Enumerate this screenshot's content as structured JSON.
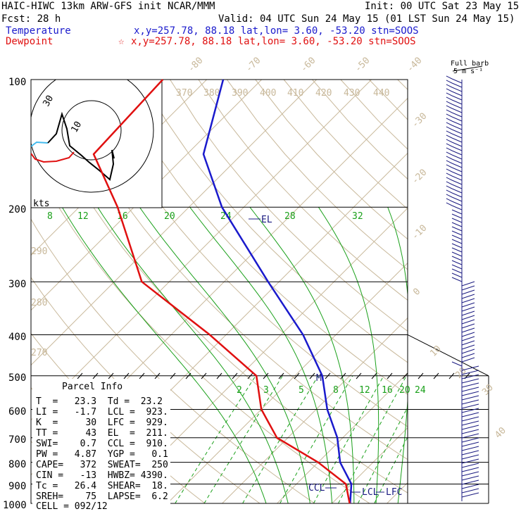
{
  "header": {
    "line1_left": "HAIC-HIWC 13km ARW-GFS init   NCAR/MMM",
    "line1_right": "Init: 00 UTC Sat 23 May 15",
    "line2_left": "Fcst:   28 h",
    "line2_right": "Valid: 04 UTC Sun 24 May 15 (01 LST Sun 24 May 15)",
    "temperature_label": "Temperature",
    "temperature_info": "x,y=257.78, 88.18   lat,lon=  3.60, -53.20  stn=SOOS",
    "dewpoint_label": "Dewpoint",
    "dewpoint_info": "x,y=257.78, 88.18   lat,lon=  3.60, -53.20  stn=SOOS",
    "dewpoint_marker": "☆"
  },
  "barb_key": {
    "line1": "Full barb",
    "line2": "5 m s⁻¹"
  },
  "pressure_levels": [
    "100",
    "200",
    "300",
    "400",
    "500",
    "600",
    "700",
    "800",
    "900",
    "1000"
  ],
  "isotherm_labels": [
    "-80",
    "-70",
    "-60",
    "-50",
    "-40",
    "-30",
    "-20",
    "-10",
    "0",
    "10",
    "20",
    "30",
    "40"
  ],
  "theta_labels": [
    "370",
    "380",
    "390",
    "400",
    "410",
    "420",
    "430",
    "440",
    "290",
    "280",
    "270"
  ],
  "mixing_ratio_upper": [
    "8",
    "12",
    "16",
    "20",
    "24",
    "28",
    "32"
  ],
  "mixing_ratio_lower": [
    "2",
    "3",
    "5",
    "8",
    "12",
    "16",
    "20",
    "24"
  ],
  "level_markers": {
    "el": "EL",
    "m": "M",
    "ccl": "CCL",
    "lcl": "LCL",
    "lfc": "LFC"
  },
  "hodograph": {
    "units": "kts",
    "ring_labels": [
      "30",
      "10"
    ]
  },
  "parcel_info": {
    "title": "Parcel Info",
    "rows": [
      "T  =   23.3  Td =  23.2",
      "LI =   -1.7  LCL =  923.",
      "K  =     30  LFC =  929.",
      "TT =     43  EL  =  211.",
      "SWI=    0.7  CCL =  910.",
      "PW =   4.87  YGP =   0.1",
      "CAPE=   372  SWEAT=  250",
      "CIN =   -13  HWBZ= 4390.",
      "Tc =   26.4  SHEAR=  18.",
      "SREH=    75  LAPSE=  6.2",
      "CELL = 092/12"
    ]
  },
  "colors": {
    "temperature": "#1a1acc",
    "dewpoint": "#e01010",
    "isotherm": "#c8b89a",
    "mixing_ratio": "#1aa01a",
    "wind_barb": "#1a1a80",
    "hodo_cyan": "#44bbee"
  },
  "chart_data": {
    "type": "line",
    "chart_kind": "skew-T log-p sounding",
    "y_axis": "pressure (hPa)",
    "y_scale": "log",
    "ylim": [
      1000,
      100
    ],
    "series": [
      {
        "name": "Temperature",
        "values": [
          {
            "p": 100,
            "t": -77
          },
          {
            "p": 150,
            "t": -67
          },
          {
            "p": 200,
            "t": -54
          },
          {
            "p": 300,
            "t": -32
          },
          {
            "p": 400,
            "t": -16
          },
          {
            "p": 500,
            "t": -5
          },
          {
            "p": 600,
            "t": 2
          },
          {
            "p": 700,
            "t": 9
          },
          {
            "p": 800,
            "t": 14
          },
          {
            "p": 900,
            "t": 20
          },
          {
            "p": 1000,
            "t": 23.3
          }
        ]
      },
      {
        "name": "Dewpoint",
        "values": [
          {
            "p": 100,
            "t": -88
          },
          {
            "p": 150,
            "t": -87
          },
          {
            "p": 200,
            "t": -73
          },
          {
            "p": 300,
            "t": -55
          },
          {
            "p": 400,
            "t": -33
          },
          {
            "p": 500,
            "t": -17
          },
          {
            "p": 600,
            "t": -10
          },
          {
            "p": 700,
            "t": -2
          },
          {
            "p": 800,
            "t": 10
          },
          {
            "p": 900,
            "t": 19
          },
          {
            "p": 1000,
            "t": 23.2
          }
        ]
      }
    ]
  }
}
